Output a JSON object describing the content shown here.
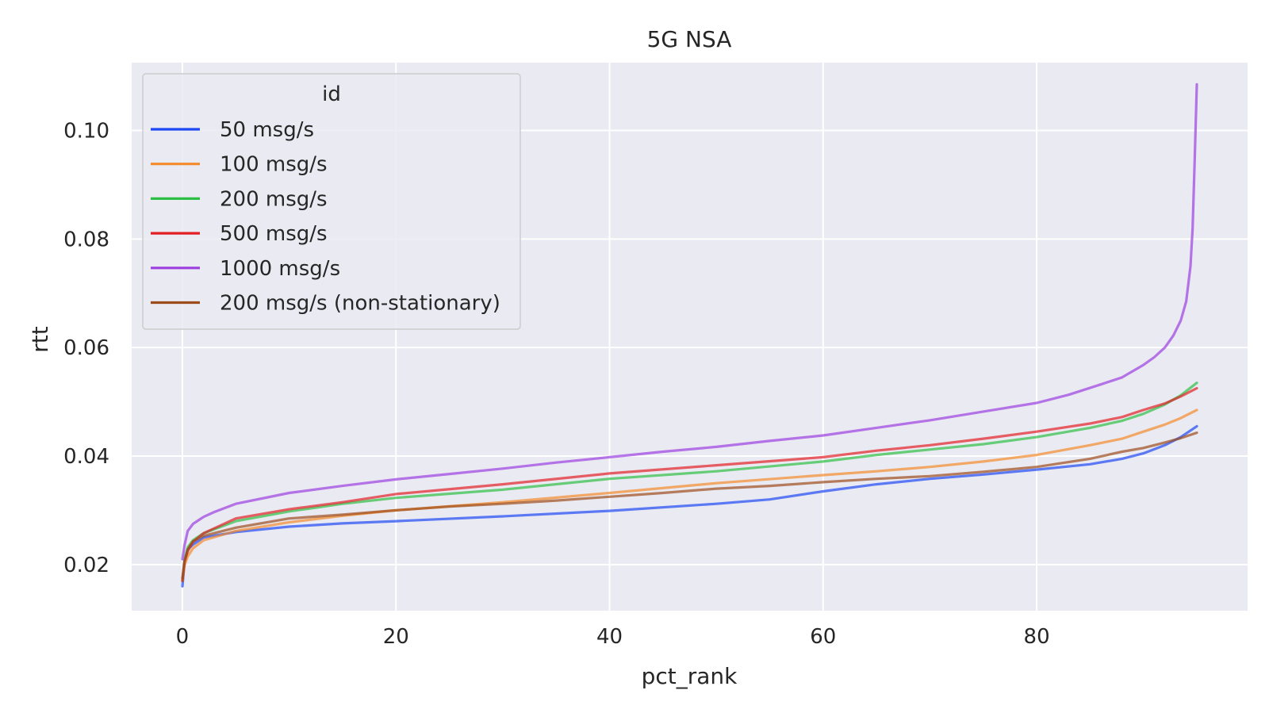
{
  "chart_data": {
    "type": "line",
    "title": "5G NSA",
    "xlabel": "pct_rank",
    "ylabel": "rtt",
    "xlim": [
      -4.75,
      99.75
    ],
    "ylim": [
      0.0115,
      0.1125
    ],
    "xticks": [
      0,
      20,
      40,
      60,
      80
    ],
    "xtick_labels": [
      "0",
      "20",
      "40",
      "60",
      "80"
    ],
    "yticks": [
      0.02,
      0.04,
      0.06,
      0.08,
      0.1
    ],
    "ytick_labels": [
      "0.02",
      "0.04",
      "0.06",
      "0.08",
      "0.10"
    ],
    "grid": true,
    "background": "#eaeaf2",
    "legend": {
      "title": "id",
      "location": "upper left"
    },
    "series": [
      {
        "name": "50 msg/s",
        "color": "#1f48f5",
        "points": [
          [
            0,
            0.016
          ],
          [
            0.2,
            0.0205
          ],
          [
            0.5,
            0.0228
          ],
          [
            1,
            0.0237
          ],
          [
            2,
            0.025
          ],
          [
            5,
            0.026
          ],
          [
            10,
            0.027
          ],
          [
            15,
            0.0276
          ],
          [
            20,
            0.028
          ],
          [
            30,
            0.0289
          ],
          [
            40,
            0.0299
          ],
          [
            50,
            0.0312
          ],
          [
            55,
            0.032
          ],
          [
            60,
            0.0335
          ],
          [
            65,
            0.0348
          ],
          [
            70,
            0.0358
          ],
          [
            75,
            0.0366
          ],
          [
            80,
            0.0375
          ],
          [
            85,
            0.0385
          ],
          [
            88,
            0.0395
          ],
          [
            90,
            0.0405
          ],
          [
            92,
            0.042
          ],
          [
            93.5,
            0.0435
          ],
          [
            95,
            0.0455
          ]
        ]
      },
      {
        "name": "100 msg/s",
        "color": "#f48a2a",
        "points": [
          [
            0,
            0.017
          ],
          [
            0.2,
            0.0198
          ],
          [
            0.5,
            0.0215
          ],
          [
            1,
            0.023
          ],
          [
            2,
            0.0245
          ],
          [
            5,
            0.0262
          ],
          [
            10,
            0.0278
          ],
          [
            15,
            0.029
          ],
          [
            20,
            0.03
          ],
          [
            30,
            0.0315
          ],
          [
            40,
            0.0332
          ],
          [
            50,
            0.035
          ],
          [
            60,
            0.0365
          ],
          [
            65,
            0.0372
          ],
          [
            70,
            0.038
          ],
          [
            75,
            0.039
          ],
          [
            80,
            0.0402
          ],
          [
            85,
            0.042
          ],
          [
            88,
            0.0432
          ],
          [
            90,
            0.0445
          ],
          [
            92,
            0.0458
          ],
          [
            93.5,
            0.047
          ],
          [
            95,
            0.0485
          ]
        ]
      },
      {
        "name": "200 msg/s",
        "color": "#2dbf45",
        "points": [
          [
            0,
            0.017
          ],
          [
            0.2,
            0.021
          ],
          [
            0.5,
            0.0232
          ],
          [
            1,
            0.0245
          ],
          [
            2,
            0.0258
          ],
          [
            5,
            0.028
          ],
          [
            10,
            0.0298
          ],
          [
            15,
            0.0312
          ],
          [
            20,
            0.0323
          ],
          [
            30,
            0.0338
          ],
          [
            40,
            0.0358
          ],
          [
            50,
            0.0372
          ],
          [
            60,
            0.039
          ],
          [
            65,
            0.0402
          ],
          [
            70,
            0.0412
          ],
          [
            75,
            0.0422
          ],
          [
            80,
            0.0435
          ],
          [
            85,
            0.0452
          ],
          [
            88,
            0.0465
          ],
          [
            90,
            0.0478
          ],
          [
            92,
            0.0495
          ],
          [
            93.5,
            0.0512
          ],
          [
            95,
            0.0535
          ]
        ]
      },
      {
        "name": "500 msg/s",
        "color": "#e31f26",
        "points": [
          [
            0,
            0.017
          ],
          [
            0.2,
            0.0205
          ],
          [
            0.5,
            0.0225
          ],
          [
            1,
            0.0242
          ],
          [
            2,
            0.0258
          ],
          [
            5,
            0.0285
          ],
          [
            10,
            0.0302
          ],
          [
            15,
            0.0315
          ],
          [
            20,
            0.033
          ],
          [
            30,
            0.0348
          ],
          [
            40,
            0.0368
          ],
          [
            50,
            0.0383
          ],
          [
            60,
            0.0398
          ],
          [
            65,
            0.041
          ],
          [
            70,
            0.042
          ],
          [
            75,
            0.0432
          ],
          [
            80,
            0.0445
          ],
          [
            85,
            0.046
          ],
          [
            88,
            0.0472
          ],
          [
            90,
            0.0485
          ],
          [
            92,
            0.0497
          ],
          [
            93.5,
            0.051
          ],
          [
            95,
            0.0525
          ]
        ]
      },
      {
        "name": "1000 msg/s",
        "color": "#9b3fdf",
        "points": [
          [
            0,
            0.021
          ],
          [
            0.2,
            0.0235
          ],
          [
            0.5,
            0.0262
          ],
          [
            1,
            0.0275
          ],
          [
            2,
            0.0288
          ],
          [
            3,
            0.0297
          ],
          [
            5,
            0.0312
          ],
          [
            10,
            0.0332
          ],
          [
            15,
            0.0345
          ],
          [
            20,
            0.0357
          ],
          [
            25,
            0.0367
          ],
          [
            30,
            0.0377
          ],
          [
            35,
            0.0388
          ],
          [
            40,
            0.0398
          ],
          [
            45,
            0.0408
          ],
          [
            50,
            0.0417
          ],
          [
            55,
            0.0428
          ],
          [
            60,
            0.0438
          ],
          [
            65,
            0.0452
          ],
          [
            70,
            0.0466
          ],
          [
            75,
            0.0482
          ],
          [
            80,
            0.0498
          ],
          [
            83,
            0.0513
          ],
          [
            86,
            0.0532
          ],
          [
            88,
            0.0545
          ],
          [
            90,
            0.0568
          ],
          [
            91,
            0.0582
          ],
          [
            92,
            0.06
          ],
          [
            92.8,
            0.0622
          ],
          [
            93.5,
            0.065
          ],
          [
            94,
            0.0685
          ],
          [
            94.4,
            0.075
          ],
          [
            94.6,
            0.082
          ],
          [
            94.8,
            0.095
          ],
          [
            95,
            0.1085
          ]
        ]
      },
      {
        "name": "200 msg/s (non-stationary)",
        "color": "#9d4d1c",
        "points": [
          [
            0,
            0.0175
          ],
          [
            0.2,
            0.0205
          ],
          [
            0.5,
            0.0228
          ],
          [
            1,
            0.0243
          ],
          [
            2,
            0.0253
          ],
          [
            5,
            0.0268
          ],
          [
            10,
            0.0285
          ],
          [
            15,
            0.0292
          ],
          [
            20,
            0.03
          ],
          [
            25,
            0.0307
          ],
          [
            30,
            0.0312
          ],
          [
            35,
            0.0318
          ],
          [
            40,
            0.0325
          ],
          [
            45,
            0.0332
          ],
          [
            50,
            0.034
          ],
          [
            55,
            0.0345
          ],
          [
            60,
            0.0352
          ],
          [
            65,
            0.0358
          ],
          [
            70,
            0.0363
          ],
          [
            75,
            0.0371
          ],
          [
            80,
            0.038
          ],
          [
            85,
            0.0395
          ],
          [
            88,
            0.0408
          ],
          [
            90,
            0.0415
          ],
          [
            92,
            0.0425
          ],
          [
            93.5,
            0.0433
          ],
          [
            95,
            0.0443
          ]
        ]
      }
    ]
  }
}
